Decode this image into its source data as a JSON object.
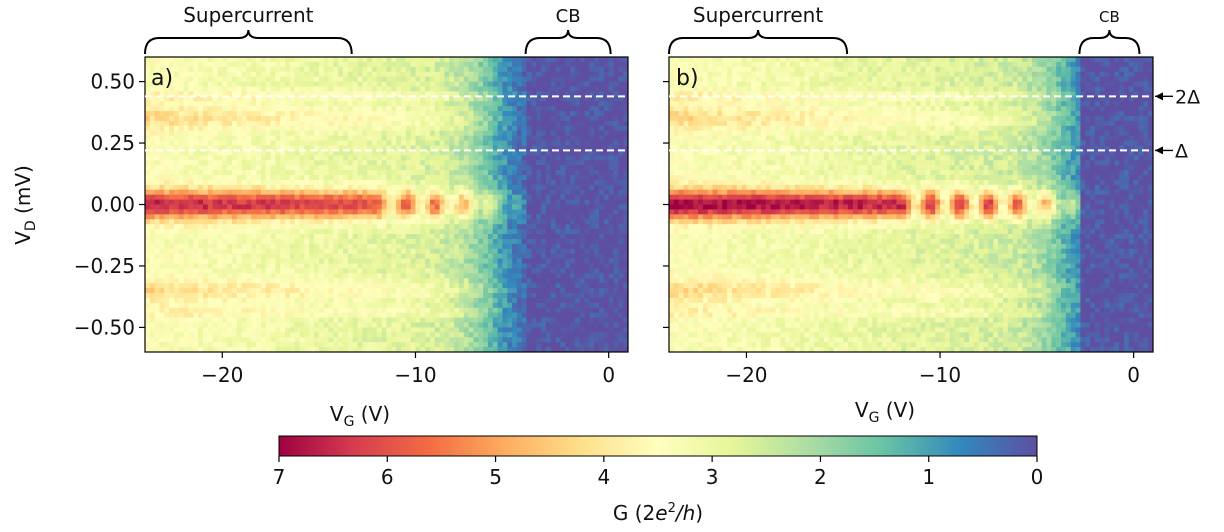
{
  "chart_data": [
    {
      "type": "heatmap",
      "panel_label": "a)",
      "xlabel_main": "V",
      "xlabel_sub": "G",
      "xlabel_unit": " (V)",
      "ylabel_main": "V",
      "ylabel_sub": "D",
      "ylabel_unit": " (mV)",
      "xlim": [
        -24,
        1
      ],
      "ylim": [
        -0.6,
        0.6
      ],
      "xticks": [
        -20,
        -10,
        0
      ],
      "xtick_labels": [
        "−20",
        "−10",
        "0"
      ],
      "yticks": [
        0.5,
        0.25,
        0.0,
        -0.25,
        -0.5
      ],
      "ytick_labels": [
        "0.50",
        "0.25",
        "0.00",
        "−0.25",
        "−0.50"
      ],
      "dashed_lines_y": [
        0.44,
        0.22
      ],
      "regions": [
        {
          "label": "Supercurrent",
          "x_start": -24,
          "x_end": -13.3
        },
        {
          "label": "CB",
          "x_start": -4.3,
          "x_end": 0.1
        }
      ],
      "value_description": {
        "peak_G_near_zero_bias": 6.5,
        "blockade_onset_V": -6
      }
    },
    {
      "type": "heatmap",
      "panel_label": "b)",
      "xlabel_main": "V",
      "xlabel_sub": "G",
      "xlabel_unit": " (V)",
      "xlim": [
        -24,
        1
      ],
      "ylim": [
        -0.6,
        0.6
      ],
      "xticks": [
        -20,
        -10,
        0
      ],
      "xtick_labels": [
        "−20",
        "−10",
        "0"
      ],
      "dashed_lines_y": [
        0.44,
        0.22
      ],
      "dashed_line_labels": [
        "2Δ",
        "Δ"
      ],
      "regions": [
        {
          "label": "Supercurrent",
          "x_start": -24,
          "x_end": -14.8
        },
        {
          "label": "CB",
          "x_start": -2.8,
          "x_end": 0.3
        }
      ],
      "value_description": {
        "peak_G_near_zero_bias": 7.0,
        "blockade_onset_V": -3
      }
    }
  ],
  "colorbar": {
    "label_prefix": "G (2",
    "label_e": "e",
    "label_sup": "2",
    "label_h": "/h",
    "label_suffix": ")",
    "range": [
      7,
      0
    ],
    "ticks": [
      7,
      6,
      5,
      4,
      3,
      2,
      1,
      0
    ],
    "tick_labels": [
      "7",
      "6",
      "5",
      "4",
      "3",
      "2",
      "1",
      "0"
    ],
    "colormap": "Spectral",
    "colors": [
      "#9e0142",
      "#d53e4f",
      "#f46d43",
      "#fdae61",
      "#fee08b",
      "#ffffbf",
      "#e6f598",
      "#abdda4",
      "#66c2a5",
      "#3288bd",
      "#5e4fa2"
    ]
  }
}
